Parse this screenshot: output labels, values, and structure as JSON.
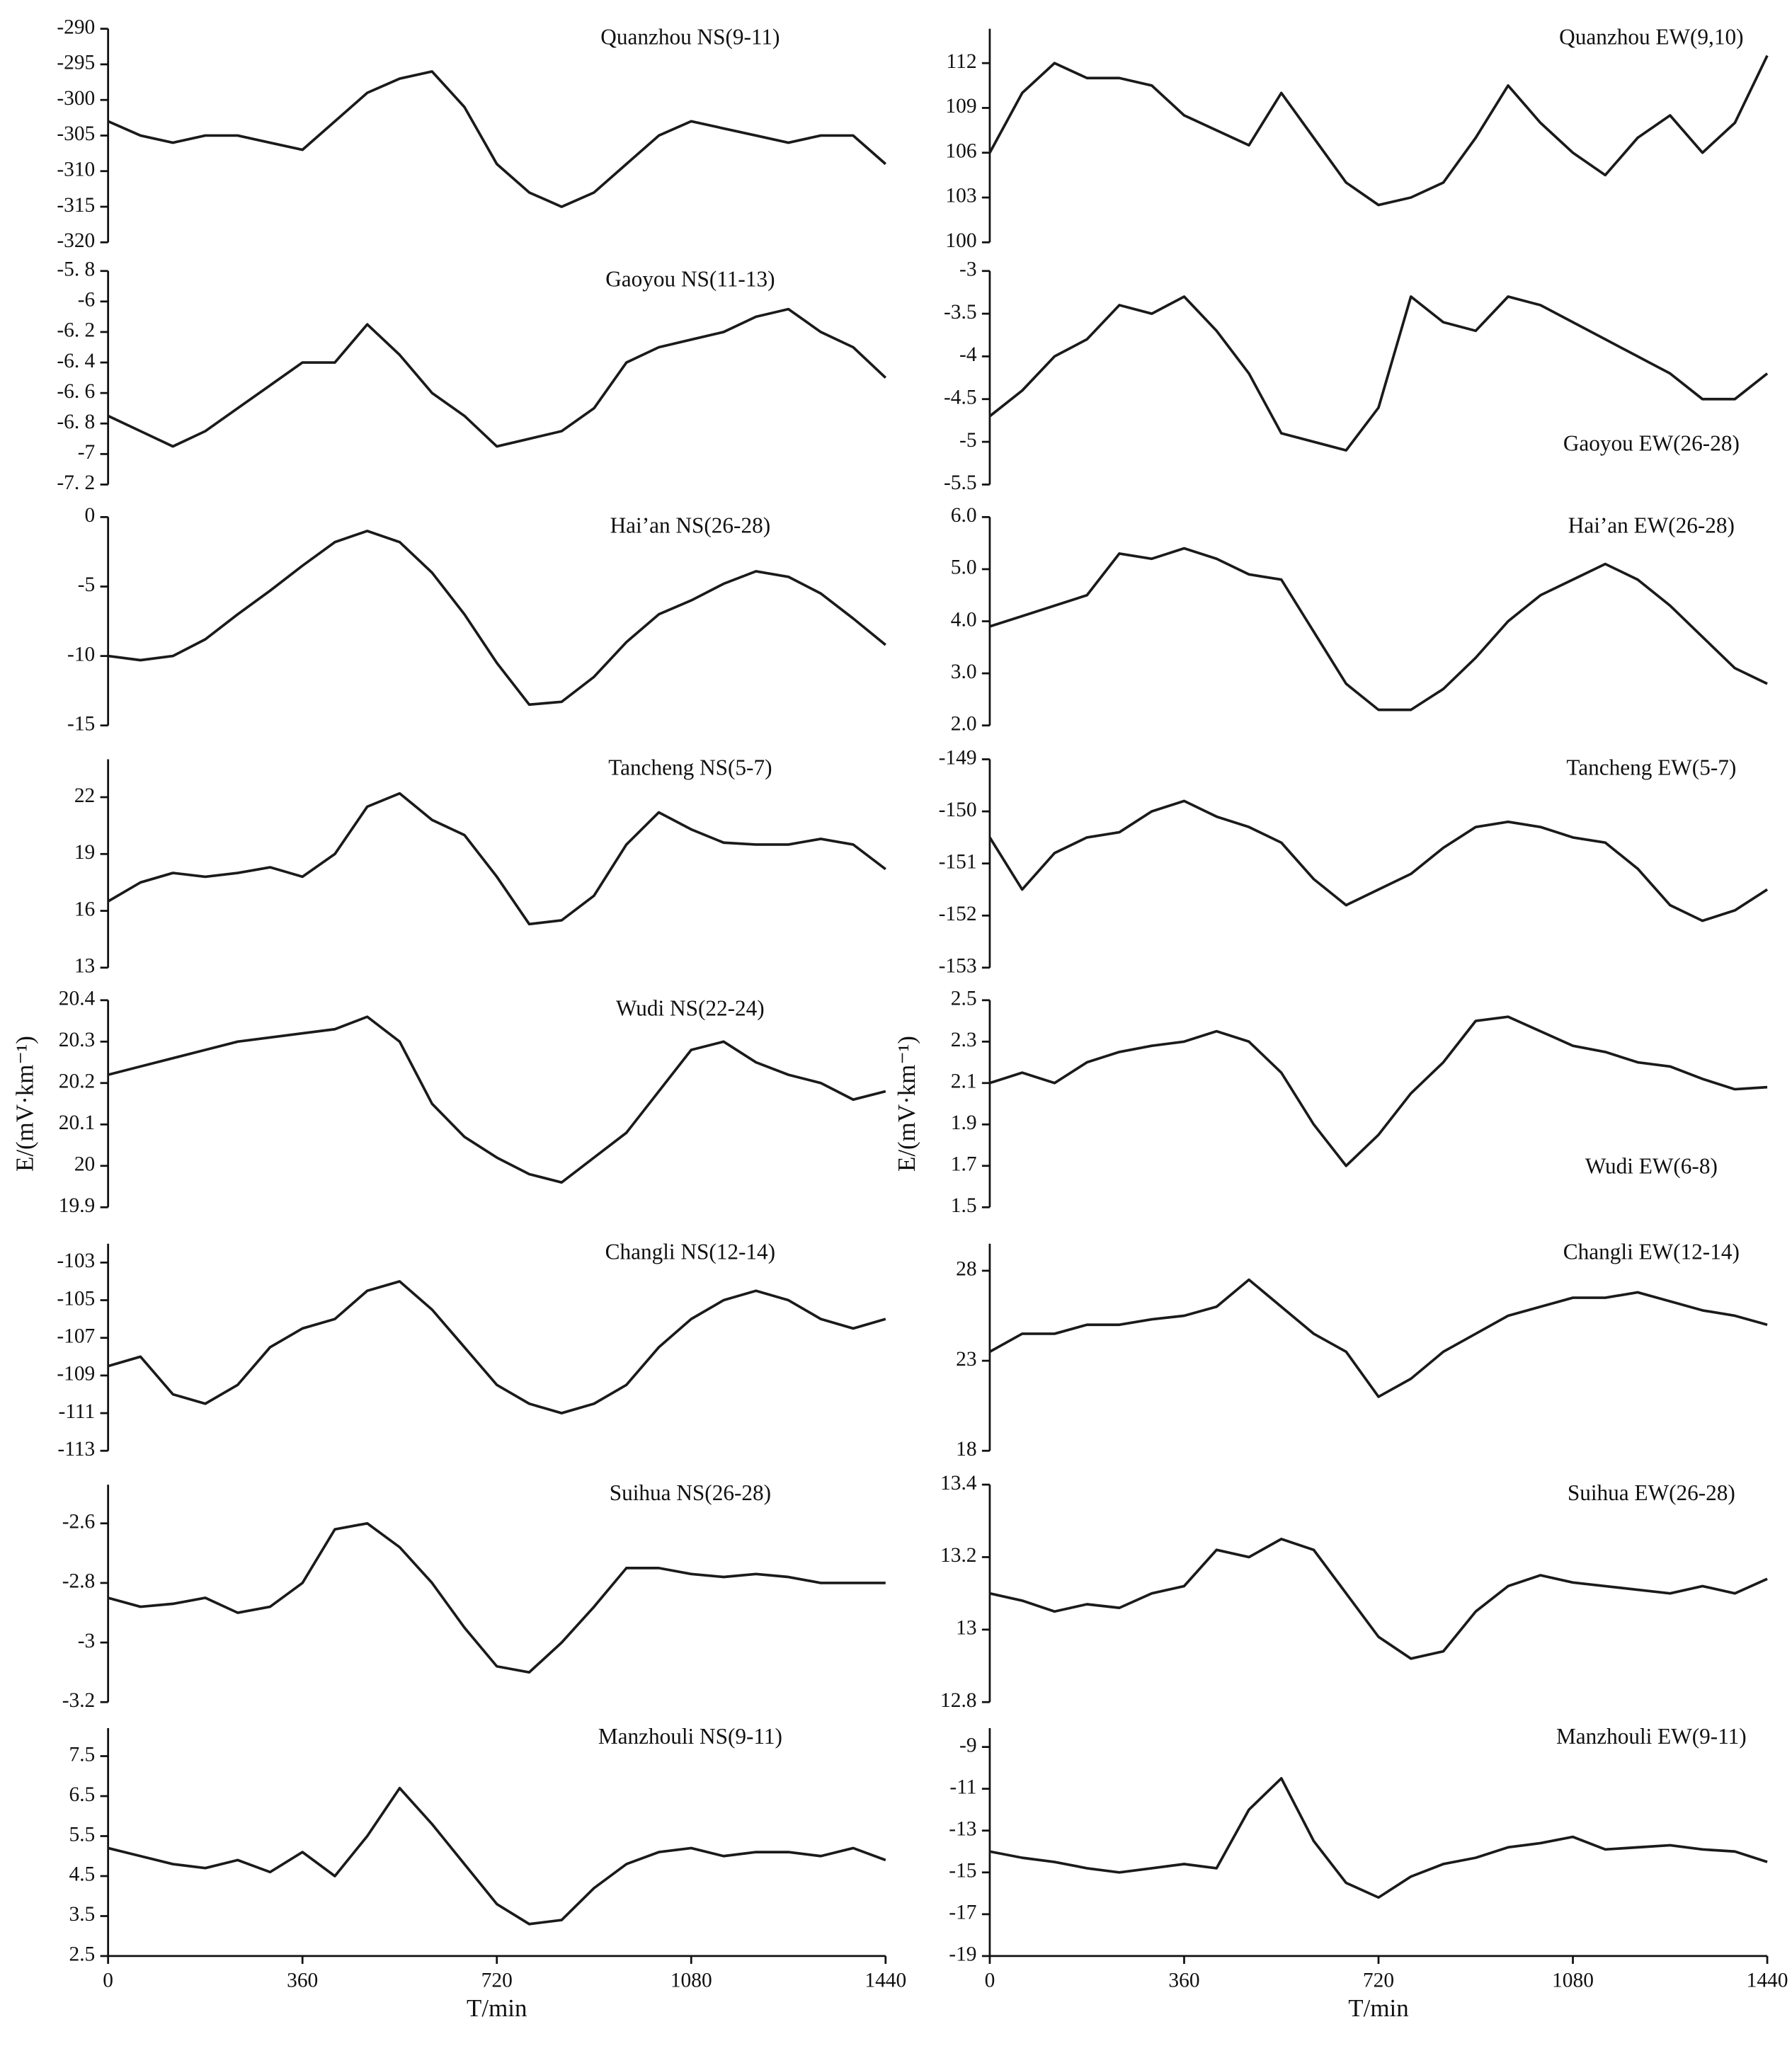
{
  "chart_data": [
    {
      "type": "line",
      "title": "Quanzhou NS(9-11)",
      "color": "#1a1a1a",
      "xlim": [
        0,
        1440
      ],
      "x": [
        0,
        60,
        120,
        180,
        240,
        300,
        360,
        420,
        480,
        540,
        600,
        660,
        720,
        780,
        840,
        900,
        960,
        1020,
        1080,
        1140,
        1200,
        1260,
        1320,
        1380,
        1440
      ],
      "values": [
        -303,
        -305,
        -306,
        -305,
        -305,
        -306,
        -307,
        -303,
        -299,
        -297,
        -296,
        -301,
        -309,
        -313,
        -315,
        -313,
        -309,
        -305,
        -303,
        -304,
        -305,
        -306,
        -305,
        -305,
        -309
      ],
      "ylim": [
        -320,
        -290
      ],
      "yticks": [
        -290,
        -295,
        -300,
        -305,
        -310,
        -315,
        -320
      ]
    },
    {
      "type": "line",
      "title": "Gaoyou NS(11-13)",
      "color": "#1a1a1a",
      "xlim": [
        0,
        1440
      ],
      "x": [
        0,
        60,
        120,
        180,
        240,
        300,
        360,
        420,
        480,
        540,
        600,
        660,
        720,
        780,
        840,
        900,
        960,
        1020,
        1080,
        1140,
        1200,
        1260,
        1320,
        1380,
        1440
      ],
      "values": [
        -6.75,
        -6.85,
        -6.95,
        -6.85,
        -6.7,
        -6.55,
        -6.4,
        -6.4,
        -6.15,
        -6.35,
        -6.6,
        -6.75,
        -6.95,
        -6.9,
        -6.85,
        -6.7,
        -6.4,
        -6.3,
        -6.25,
        -6.2,
        -6.1,
        -6.05,
        -6.2,
        -6.3,
        -6.5
      ],
      "ylim": [
        -7.2,
        -5.8
      ],
      "yticks": [
        {
          "value": -5.8,
          "label": "-5. 8"
        },
        -6,
        {
          "value": -6.2,
          "label": "-6. 2"
        },
        {
          "value": -6.4,
          "label": "-6. 4"
        },
        {
          "value": -6.6,
          "label": "-6. 6"
        },
        {
          "value": -6.8,
          "label": "-6. 8"
        },
        -7,
        {
          "value": -7.2,
          "label": "-7. 2"
        }
      ]
    },
    {
      "type": "line",
      "title": "Hai’an  NS(26-28)",
      "color": "#1a1a1a",
      "xlim": [
        0,
        1440
      ],
      "x": [
        0,
        60,
        120,
        180,
        240,
        300,
        360,
        420,
        480,
        540,
        600,
        660,
        720,
        780,
        840,
        900,
        960,
        1020,
        1080,
        1140,
        1200,
        1260,
        1320,
        1380,
        1440
      ],
      "values": [
        -10,
        -10.3,
        -10,
        -8.8,
        -7,
        -5.3,
        -3.5,
        -1.8,
        -1,
        -1.8,
        -4,
        -7,
        -10.5,
        -13.5,
        -13.3,
        -11.5,
        -9,
        -7,
        -6,
        -4.8,
        -3.9,
        -4.3,
        -5.5,
        -7.3,
        -9.2
      ],
      "ylim": [
        -15,
        0
      ],
      "yticks": [
        0,
        -5,
        -10,
        -15
      ]
    },
    {
      "type": "line",
      "title": "Tancheng  NS(5-7)",
      "color": "#1a1a1a",
      "xlim": [
        0,
        1440
      ],
      "x": [
        0,
        60,
        120,
        180,
        240,
        300,
        360,
        420,
        480,
        540,
        600,
        660,
        720,
        780,
        840,
        900,
        960,
        1020,
        1080,
        1140,
        1200,
        1260,
        1320,
        1380,
        1440
      ],
      "values": [
        16.5,
        17.5,
        18,
        17.8,
        18,
        18.3,
        17.8,
        19,
        21.5,
        22.2,
        20.8,
        20,
        17.8,
        15.3,
        15.5,
        16.8,
        19.5,
        21.2,
        20.3,
        19.6,
        19.5,
        19.5,
        19.8,
        19.5,
        18.2
      ],
      "ylim": [
        13,
        24
      ],
      "yticks": [
        13,
        16,
        19,
        22
      ]
    },
    {
      "type": "line",
      "title": "Wudi  NS(22-24)",
      "color": "#1a1a1a",
      "xlim": [
        0,
        1440
      ],
      "y_label": "E/(mV·km⁻¹)",
      "x": [
        0,
        60,
        120,
        180,
        240,
        300,
        360,
        420,
        480,
        540,
        600,
        660,
        720,
        780,
        840,
        900,
        960,
        1020,
        1080,
        1140,
        1200,
        1260,
        1320,
        1380,
        1440
      ],
      "values": [
        20.22,
        20.24,
        20.26,
        20.28,
        20.3,
        20.31,
        20.32,
        20.33,
        20.36,
        20.3,
        20.15,
        20.07,
        20.02,
        19.98,
        19.96,
        20.02,
        20.08,
        20.18,
        20.28,
        20.3,
        20.25,
        20.22,
        20.2,
        20.16,
        20.18
      ],
      "ylim": [
        19.9,
        20.4
      ],
      "yticks": [
        19.9,
        20,
        20.1,
        20.2,
        20.3,
        20.4
      ]
    },
    {
      "type": "line",
      "title": "Changli  NS(12-14)",
      "color": "#1a1a1a",
      "xlim": [
        0,
        1440
      ],
      "x": [
        0,
        60,
        120,
        180,
        240,
        300,
        360,
        420,
        480,
        540,
        600,
        660,
        720,
        780,
        840,
        900,
        960,
        1020,
        1080,
        1140,
        1200,
        1260,
        1320,
        1380,
        1440
      ],
      "values": [
        -108.5,
        -108,
        -110,
        -110.5,
        -109.5,
        -107.5,
        -106.5,
        -106,
        -104.5,
        -104,
        -105.5,
        -107.5,
        -109.5,
        -110.5,
        -111,
        -110.5,
        -109.5,
        -107.5,
        -106,
        -105,
        -104.5,
        -105,
        -106,
        -106.5,
        -106
      ],
      "ylim": [
        -113,
        -102
      ],
      "yticks": [
        -103,
        -105,
        -107,
        -109,
        -111,
        -113
      ]
    },
    {
      "type": "line",
      "title": "Suihua  NS(26-28)",
      "color": "#1a1a1a",
      "xlim": [
        0,
        1440
      ],
      "x": [
        0,
        60,
        120,
        180,
        240,
        300,
        360,
        420,
        480,
        540,
        600,
        660,
        720,
        780,
        840,
        900,
        960,
        1020,
        1080,
        1140,
        1200,
        1260,
        1320,
        1380,
        1440
      ],
      "values": [
        -2.85,
        -2.88,
        -2.87,
        -2.85,
        -2.9,
        -2.88,
        -2.8,
        -2.62,
        -2.6,
        -2.68,
        -2.8,
        -2.95,
        -3.08,
        -3.1,
        -3,
        -2.88,
        -2.75,
        -2.75,
        -2.77,
        -2.78,
        -2.77,
        -2.78,
        -2.8,
        -2.8,
        -2.8
      ],
      "ylim": [
        -3.2,
        -2.47
      ],
      "yticks": [
        -2.6,
        -2.8,
        -3,
        -3.2
      ]
    },
    {
      "type": "line",
      "title": "Manzhouli  NS(9-11)",
      "color": "#1a1a1a",
      "xlim": [
        0,
        1440
      ],
      "xticks": [
        0,
        360,
        720,
        1080,
        1440
      ],
      "x_label": "T/min",
      "x": [
        0,
        60,
        120,
        180,
        240,
        300,
        360,
        420,
        480,
        540,
        600,
        660,
        720,
        780,
        840,
        900,
        960,
        1020,
        1080,
        1140,
        1200,
        1260,
        1320,
        1380,
        1440
      ],
      "values": [
        5.2,
        5,
        4.8,
        4.7,
        4.9,
        4.6,
        5.1,
        4.5,
        5.5,
        6.7,
        5.8,
        4.8,
        3.8,
        3.3,
        3.4,
        4.2,
        4.8,
        5.1,
        5.2,
        5,
        5.1,
        5.1,
        5,
        5.2,
        4.9
      ],
      "ylim": [
        2.5,
        8.2
      ],
      "yticks": [
        2.5,
        3.5,
        4.5,
        5.5,
        6.5,
        7.5
      ]
    },
    {
      "type": "line",
      "title": "Quanzhou  EW(9,10)",
      "color": "#1a1a1a",
      "xlim": [
        0,
        1440
      ],
      "x": [
        0,
        60,
        120,
        180,
        240,
        300,
        360,
        420,
        480,
        540,
        600,
        660,
        720,
        780,
        840,
        900,
        960,
        1020,
        1080,
        1140,
        1200,
        1260,
        1320,
        1380,
        1440
      ],
      "values": [
        106,
        110,
        112,
        111,
        111,
        110.5,
        108.5,
        107.5,
        106.5,
        110,
        107,
        104,
        102.5,
        103,
        104,
        107,
        110.5,
        108,
        106,
        104.5,
        107,
        108.5,
        106,
        108,
        112.5
      ],
      "ylim": [
        100,
        114.3
      ],
      "yticks": [
        100,
        103,
        106,
        109,
        112
      ]
    },
    {
      "type": "line",
      "title": "Gaoyou  EW(26-28)",
      "color": "#1a1a1a",
      "xlim": [
        0,
        1440
      ],
      "x": [
        0,
        60,
        120,
        180,
        240,
        300,
        360,
        420,
        480,
        540,
        600,
        660,
        720,
        780,
        840,
        900,
        960,
        1020,
        1080,
        1140,
        1200,
        1260,
        1320,
        1380,
        1440
      ],
      "values": [
        -4.7,
        -4.4,
        -4,
        -3.8,
        -3.4,
        -3.5,
        -3.3,
        -3.7,
        -4.2,
        -4.9,
        -5,
        -5.1,
        -4.6,
        -3.3,
        -3.6,
        -3.7,
        -3.3,
        -3.4,
        -3.6,
        -3.8,
        -4,
        -4.2,
        -4.5,
        -4.5,
        -4.2
      ],
      "ylim": [
        -5.5,
        -3
      ],
      "yticks": [
        -3,
        -3.5,
        -4,
        -4.5,
        -5,
        -5.5
      ]
    },
    {
      "type": "line",
      "title": "Hai’an  EW(26-28)",
      "color": "#1a1a1a",
      "xlim": [
        0,
        1440
      ],
      "x": [
        0,
        60,
        120,
        180,
        240,
        300,
        360,
        420,
        480,
        540,
        600,
        660,
        720,
        780,
        840,
        900,
        960,
        1020,
        1080,
        1140,
        1200,
        1260,
        1320,
        1380,
        1440
      ],
      "values": [
        3.9,
        4.1,
        4.3,
        4.5,
        5.3,
        5.2,
        5.4,
        5.2,
        4.9,
        4.8,
        3.8,
        2.8,
        2.3,
        2.3,
        2.7,
        3.3,
        4,
        4.5,
        4.8,
        5.1,
        4.8,
        4.3,
        3.7,
        3.1,
        2.8
      ],
      "ylim": [
        2,
        6
      ],
      "yticks": [
        {
          "value": 2,
          "label": "2.0"
        },
        {
          "value": 3,
          "label": "3.0"
        },
        {
          "value": 4,
          "label": "4.0"
        },
        {
          "value": 5,
          "label": "5.0"
        },
        {
          "value": 6,
          "label": "6.0"
        }
      ]
    },
    {
      "type": "line",
      "title": "Tancheng  EW(5-7)",
      "color": "#1a1a1a",
      "xlim": [
        0,
        1440
      ],
      "x": [
        0,
        60,
        120,
        180,
        240,
        300,
        360,
        420,
        480,
        540,
        600,
        660,
        720,
        780,
        840,
        900,
        960,
        1020,
        1080,
        1140,
        1200,
        1260,
        1320,
        1380,
        1440
      ],
      "values": [
        -150.5,
        -151.5,
        -150.8,
        -150.5,
        -150.4,
        -150,
        -149.8,
        -150.1,
        -150.3,
        -150.6,
        -151.3,
        -151.8,
        -151.5,
        -151.2,
        -150.7,
        -150.3,
        -150.2,
        -150.3,
        -150.5,
        -150.6,
        -151.1,
        -151.8,
        -152.1,
        -151.9,
        -151.5
      ],
      "ylim": [
        -153,
        -149
      ],
      "yticks": [
        -149,
        -150,
        -151,
        -152,
        -153
      ]
    },
    {
      "type": "line",
      "title": "Wudi  EW(6-8)",
      "color": "#1a1a1a",
      "xlim": [
        0,
        1440
      ],
      "y_label": "E/(mV·km⁻¹)",
      "x": [
        0,
        60,
        120,
        180,
        240,
        300,
        360,
        420,
        480,
        540,
        600,
        660,
        720,
        780,
        840,
        900,
        960,
        1020,
        1080,
        1140,
        1200,
        1260,
        1320,
        1380,
        1440
      ],
      "values": [
        2.1,
        2.15,
        2.1,
        2.2,
        2.25,
        2.28,
        2.3,
        2.35,
        2.3,
        2.15,
        1.9,
        1.7,
        1.85,
        2.05,
        2.2,
        2.4,
        2.42,
        2.35,
        2.28,
        2.25,
        2.2,
        2.18,
        2.12,
        2.07,
        2.08
      ],
      "ylim": [
        1.5,
        2.5
      ],
      "yticks": [
        1.5,
        1.7,
        1.9,
        2.1,
        2.3,
        2.5
      ]
    },
    {
      "type": "line",
      "title": "Changli  EW(12-14)",
      "color": "#1a1a1a",
      "xlim": [
        0,
        1440
      ],
      "x": [
        0,
        60,
        120,
        180,
        240,
        300,
        360,
        420,
        480,
        540,
        600,
        660,
        720,
        780,
        840,
        900,
        960,
        1020,
        1080,
        1140,
        1200,
        1260,
        1320,
        1380,
        1440
      ],
      "values": [
        23.5,
        24.5,
        24.5,
        25,
        25,
        25.3,
        25.5,
        26,
        27.5,
        26,
        24.5,
        23.5,
        21,
        22,
        23.5,
        24.5,
        25.5,
        26,
        26.5,
        26.5,
        26.8,
        26.3,
        25.8,
        25.5,
        25
      ],
      "ylim": [
        18,
        29.5
      ],
      "yticks": [
        18,
        23,
        28
      ]
    },
    {
      "type": "line",
      "title": "Suihua  EW(26-28)",
      "color": "#1a1a1a",
      "xlim": [
        0,
        1440
      ],
      "x": [
        0,
        60,
        120,
        180,
        240,
        300,
        360,
        420,
        480,
        540,
        600,
        660,
        720,
        780,
        840,
        900,
        960,
        1020,
        1080,
        1140,
        1200,
        1260,
        1320,
        1380,
        1440
      ],
      "values": [
        13.1,
        13.08,
        13.05,
        13.07,
        13.06,
        13.1,
        13.12,
        13.22,
        13.2,
        13.25,
        13.22,
        13.1,
        12.98,
        12.92,
        12.94,
        13.05,
        13.12,
        13.15,
        13.13,
        13.12,
        13.11,
        13.1,
        13.12,
        13.1,
        13.14
      ],
      "ylim": [
        12.8,
        13.4
      ],
      "yticks": [
        12.8,
        13,
        13.2,
        13.4
      ]
    },
    {
      "type": "line",
      "title": "Manzhouli  EW(9-11)",
      "color": "#1a1a1a",
      "xlim": [
        0,
        1440
      ],
      "xticks": [
        0,
        360,
        720,
        1080,
        1440
      ],
      "x_label": "T/min",
      "x": [
        0,
        60,
        120,
        180,
        240,
        300,
        360,
        420,
        480,
        540,
        600,
        660,
        720,
        780,
        840,
        900,
        960,
        1020,
        1080,
        1140,
        1200,
        1260,
        1320,
        1380,
        1440
      ],
      "values": [
        -14,
        -14.3,
        -14.5,
        -14.8,
        -15,
        -14.8,
        -14.6,
        -14.8,
        -12,
        -10.5,
        -13.5,
        -15.5,
        -16.2,
        -15.2,
        -14.6,
        -14.3,
        -13.8,
        -13.6,
        -13.3,
        -13.9,
        -13.8,
        -13.7,
        -13.9,
        -14,
        -14.5
      ],
      "ylim": [
        -19,
        -8.1
      ],
      "yticks": [
        -9,
        -11,
        -13,
        -15,
        -17,
        -19
      ]
    }
  ]
}
